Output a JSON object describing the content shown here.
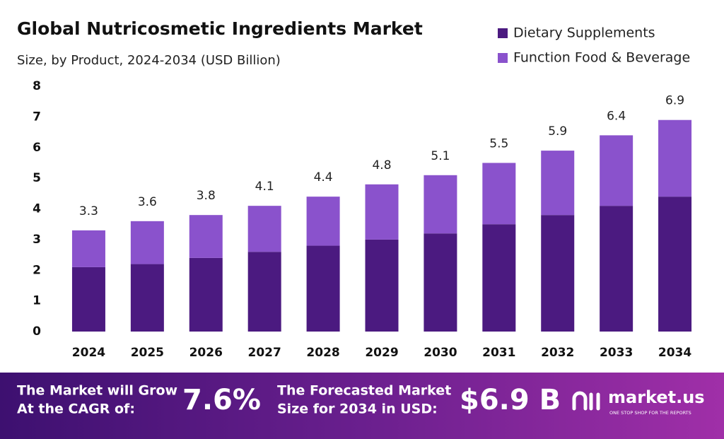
{
  "chart_data": {
    "type": "bar",
    "stacked": true,
    "title": "Global Nutricosmetic Ingredients Market",
    "subtitle": "Size, by Product, 2024-2034 (USD Billion)",
    "categories": [
      "2024",
      "2025",
      "2026",
      "2027",
      "2028",
      "2029",
      "2030",
      "2031",
      "2032",
      "2033",
      "2034"
    ],
    "series": [
      {
        "name": "Dietary Supplements",
        "color": "#4b1a80",
        "values": [
          2.1,
          2.2,
          2.4,
          2.6,
          2.8,
          3.0,
          3.2,
          3.5,
          3.8,
          4.1,
          4.4
        ]
      },
      {
        "name": "Function Food & Beverage",
        "color": "#8a52cc",
        "values": [
          1.2,
          1.4,
          1.4,
          1.5,
          1.6,
          1.8,
          1.9,
          2.0,
          2.1,
          2.3,
          2.5
        ]
      }
    ],
    "totals": [
      3.3,
      3.6,
      3.8,
      4.1,
      4.4,
      4.8,
      5.1,
      5.5,
      5.9,
      6.4,
      6.9
    ],
    "ylim": [
      0,
      8
    ],
    "yticks": [
      0,
      1,
      2,
      3,
      4,
      5,
      6,
      7,
      8
    ],
    "grid": false,
    "legend": "top-right"
  },
  "banner": {
    "cagr_label": [
      "The Market will Grow",
      "At the CAGR of:"
    ],
    "cagr_value": "7.6%",
    "forecast_label": [
      "The Forecasted Market",
      "Size for 2034 in USD:"
    ],
    "forecast_value": "$6.9 B",
    "brand": "market.us",
    "tagline": "ONE STOP SHOP FOR THE REPORTS"
  }
}
